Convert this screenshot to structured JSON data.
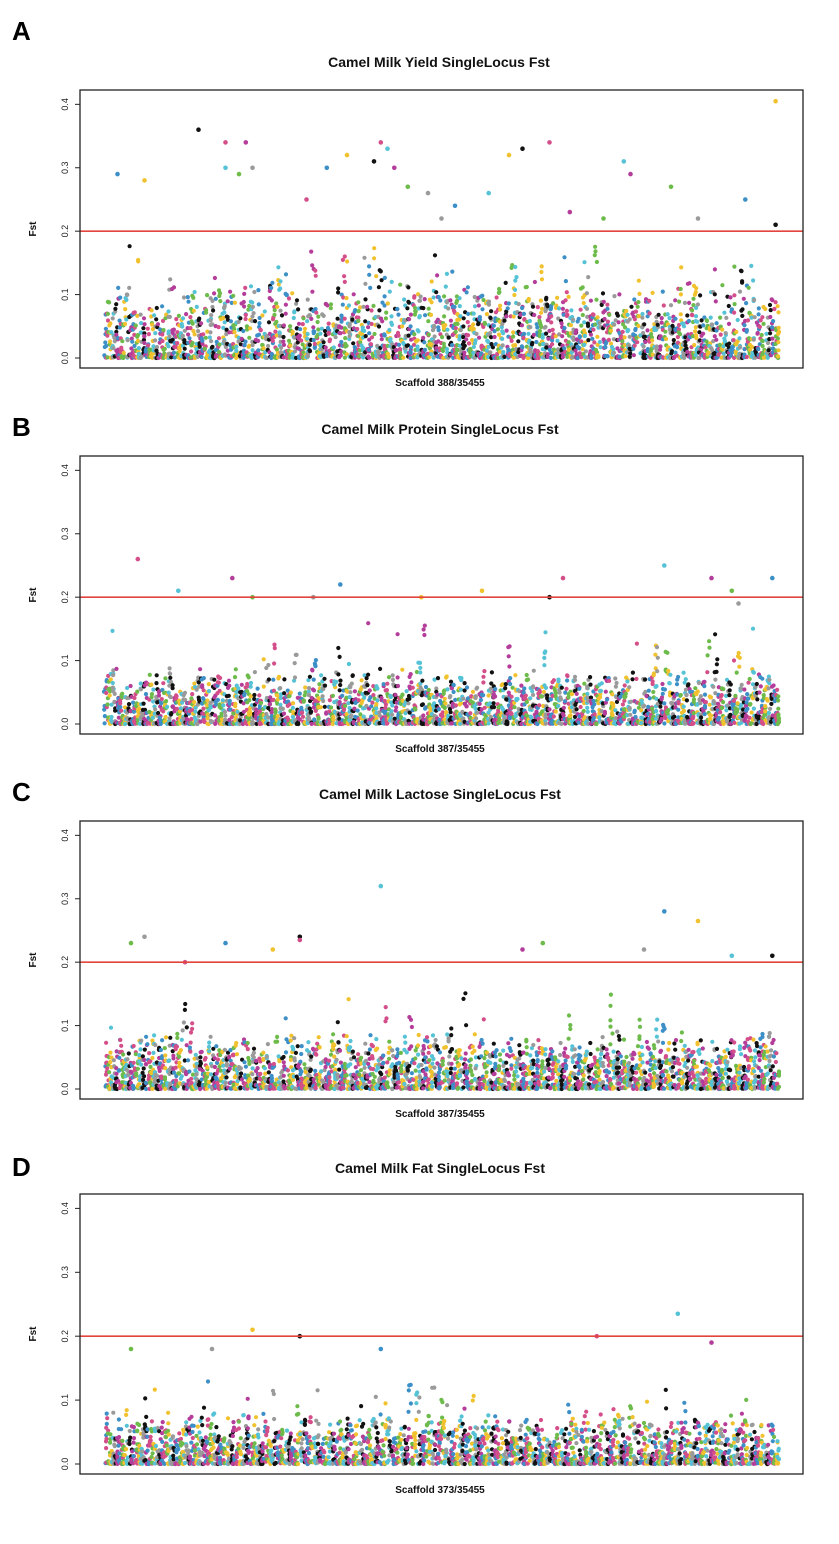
{
  "figure": {
    "palette": [
      "#3c8fc7",
      "#d44f8a",
      "#6dbb4a",
      "#f2c12e",
      "#55c2d6",
      "#9a9a9a",
      "#111111",
      "#b53d9a"
    ]
  },
  "chart_data": [
    {
      "panel": "A",
      "type": "scatter",
      "title": "Camel Milk Yield SingleLocus Fst",
      "xlabel": "Scaffold 388/35455",
      "ylabel": "Fst",
      "ylim": [
        0,
        0.41
      ],
      "yticks": [
        "0.0",
        "0.1",
        "0.2",
        "0.3",
        "0.4"
      ],
      "threshold": 0.2,
      "n_scaffolds": 388,
      "baseline_max": 0.12,
      "seed": 11,
      "outliers": [
        [
          0.02,
          0.29
        ],
        [
          0.06,
          0.28
        ],
        [
          0.14,
          0.36
        ],
        [
          0.18,
          0.34
        ],
        [
          0.18,
          0.3
        ],
        [
          0.21,
          0.34
        ],
        [
          0.2,
          0.29
        ],
        [
          0.22,
          0.3
        ],
        [
          0.33,
          0.3
        ],
        [
          0.36,
          0.32
        ],
        [
          0.4,
          0.31
        ],
        [
          0.41,
          0.34
        ],
        [
          0.42,
          0.33
        ],
        [
          0.43,
          0.3
        ],
        [
          0.45,
          0.27
        ],
        [
          0.48,
          0.26
        ],
        [
          0.52,
          0.24
        ],
        [
          0.6,
          0.32
        ],
        [
          0.62,
          0.33
        ],
        [
          0.66,
          0.34
        ],
        [
          0.77,
          0.31
        ],
        [
          0.78,
          0.29
        ],
        [
          0.84,
          0.27
        ],
        [
          0.88,
          0.22
        ],
        [
          0.95,
          0.25
        ],
        [
          0.995,
          0.405
        ],
        [
          0.995,
          0.21
        ],
        [
          0.3,
          0.25
        ],
        [
          0.57,
          0.26
        ],
        [
          0.69,
          0.23
        ],
        [
          0.74,
          0.22
        ],
        [
          0.5,
          0.22
        ]
      ]
    },
    {
      "panel": "B",
      "type": "scatter",
      "title": "Camel Milk Protein SingleLocus Fst",
      "xlabel": "Scaffold 387/35455",
      "ylabel": "Fst",
      "ylim": [
        0,
        0.41
      ],
      "yticks": [
        "0.0",
        "0.1",
        "0.2",
        "0.3",
        "0.4"
      ],
      "threshold": 0.2,
      "n_scaffolds": 387,
      "baseline_max": 0.09,
      "seed": 23,
      "outliers": [
        [
          0.05,
          0.26
        ],
        [
          0.11,
          0.21
        ],
        [
          0.19,
          0.23
        ],
        [
          0.22,
          0.2
        ],
        [
          0.31,
          0.2
        ],
        [
          0.35,
          0.22
        ],
        [
          0.56,
          0.21
        ],
        [
          0.66,
          0.2
        ],
        [
          0.68,
          0.23
        ],
        [
          0.83,
          0.25
        ],
        [
          0.9,
          0.23
        ],
        [
          0.93,
          0.21
        ],
        [
          0.94,
          0.19
        ],
        [
          0.99,
          0.23
        ],
        [
          0.47,
          0.2
        ]
      ]
    },
    {
      "panel": "C",
      "type": "scatter",
      "title": "Camel Milk Lactose SingleLocus Fst",
      "xlabel": "Scaffold 387/35455",
      "ylabel": "Fst",
      "ylim": [
        0,
        0.41
      ],
      "yticks": [
        "0.0",
        "0.1",
        "0.2",
        "0.3",
        "0.4"
      ],
      "threshold": 0.2,
      "n_scaffolds": 387,
      "baseline_max": 0.09,
      "seed": 37,
      "outliers": [
        [
          0.04,
          0.23
        ],
        [
          0.06,
          0.24
        ],
        [
          0.18,
          0.23
        ],
        [
          0.25,
          0.22
        ],
        [
          0.29,
          0.24
        ],
        [
          0.29,
          0.235
        ],
        [
          0.41,
          0.32
        ],
        [
          0.62,
          0.22
        ],
        [
          0.65,
          0.23
        ],
        [
          0.8,
          0.22
        ],
        [
          0.83,
          0.28
        ],
        [
          0.88,
          0.265
        ],
        [
          0.99,
          0.21
        ],
        [
          0.12,
          0.2
        ],
        [
          0.93,
          0.21
        ]
      ]
    },
    {
      "panel": "D",
      "type": "scatter",
      "title": "Camel Milk Fat SingleLocus Fst",
      "xlabel": "Scaffold 373/35455",
      "ylabel": "Fst",
      "ylim": [
        0,
        0.41
      ],
      "yticks": [
        "0.0",
        "0.1",
        "0.2",
        "0.3",
        "0.4"
      ],
      "threshold": 0.2,
      "n_scaffolds": 373,
      "baseline_max": 0.08,
      "seed": 53,
      "outliers": [
        [
          0.22,
          0.21
        ],
        [
          0.29,
          0.2
        ],
        [
          0.73,
          0.2
        ],
        [
          0.85,
          0.235
        ],
        [
          0.9,
          0.19
        ],
        [
          0.04,
          0.18
        ],
        [
          0.16,
          0.18
        ],
        [
          0.41,
          0.18
        ]
      ]
    }
  ]
}
